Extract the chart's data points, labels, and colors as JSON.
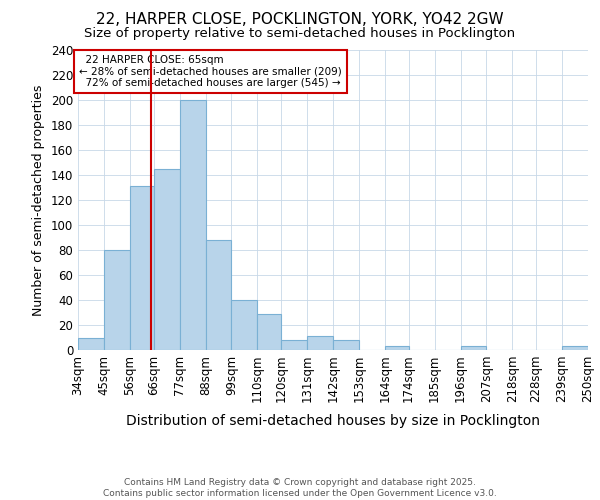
{
  "title_line1": "22, HARPER CLOSE, POCKLINGTON, YORK, YO42 2GW",
  "title_line2": "Size of property relative to semi-detached houses in Pocklington",
  "xlabel": "Distribution of semi-detached houses by size in Pocklington",
  "ylabel": "Number of semi-detached properties",
  "footer_line1": "Contains HM Land Registry data © Crown copyright and database right 2025.",
  "footer_line2": "Contains public sector information licensed under the Open Government Licence v3.0.",
  "bins": [
    34,
    45,
    56,
    66,
    77,
    88,
    99,
    110,
    120,
    131,
    142,
    153,
    164,
    174,
    185,
    196,
    207,
    218,
    228,
    239,
    250
  ],
  "values": [
    10,
    80,
    131,
    145,
    200,
    88,
    40,
    29,
    8,
    11,
    8,
    0,
    3,
    0,
    0,
    3,
    0,
    0,
    0,
    3
  ],
  "bar_color": "#b8d4ea",
  "bar_edge_color": "#7ab0d4",
  "property_value": 65,
  "property_label": "22 HARPER CLOSE: 65sqm",
  "smaller_pct": 28,
  "smaller_count": 209,
  "larger_pct": 72,
  "larger_count": 545,
  "annotation_box_color": "#ffffff",
  "annotation_box_edge": "#cc0000",
  "vline_color": "#cc0000",
  "ylim": [
    0,
    240
  ],
  "yticks": [
    0,
    20,
    40,
    60,
    80,
    100,
    120,
    140,
    160,
    180,
    200,
    220,
    240
  ],
  "bg_color": "#ffffff",
  "grid_color": "#c8d8e8",
  "title_fontsize": 11,
  "subtitle_fontsize": 9.5,
  "xlabel_fontsize": 10,
  "ylabel_fontsize": 9,
  "tick_fontsize": 8.5,
  "footer_fontsize": 6.5
}
